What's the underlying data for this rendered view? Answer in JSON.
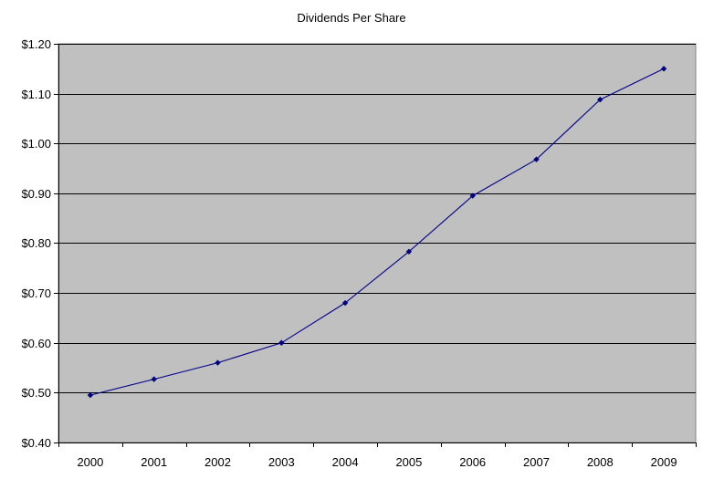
{
  "chart_data": {
    "type": "line",
    "title": "Dividends Per Share",
    "xlabel": "",
    "ylabel": "",
    "x": [
      "2000",
      "2001",
      "2002",
      "2003",
      "2004",
      "2005",
      "2006",
      "2007",
      "2008",
      "2009"
    ],
    "series": [
      {
        "values": [
          0.495,
          0.527,
          0.56,
          0.6,
          0.68,
          0.783,
          0.895,
          0.968,
          1.088,
          1.15
        ]
      }
    ],
    "ylim": [
      0.4,
      1.2
    ],
    "yticks": [
      0.4,
      0.5,
      0.6,
      0.7,
      0.8,
      0.9,
      1.0,
      1.1,
      1.2
    ],
    "ytick_labels": [
      "$0.40",
      "$0.50",
      "$0.60",
      "$0.70",
      "$0.80",
      "$0.90",
      "$1.00",
      "$1.10",
      "$1.20"
    ],
    "grid": "horizontal",
    "legend": "none",
    "colors": {
      "plot_background": "#c0c0c0",
      "series_line": "#00008b",
      "marker": "#000080",
      "gridline": "#000000"
    }
  }
}
